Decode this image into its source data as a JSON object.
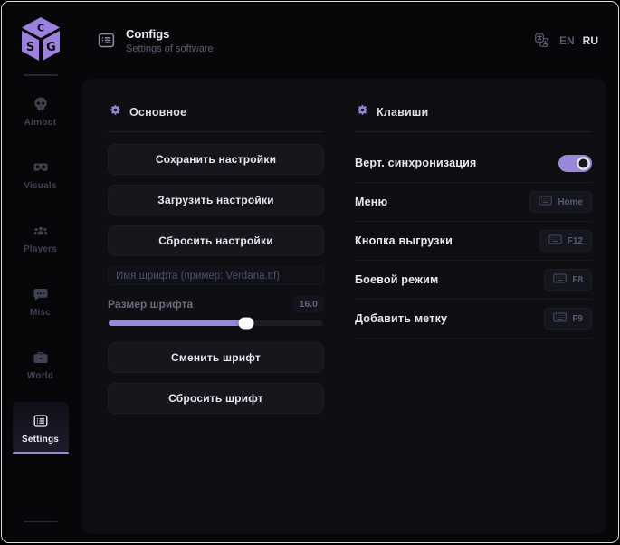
{
  "colors": {
    "accent": "#9b87d8",
    "panel": "#0e0e13",
    "background": "#07070a"
  },
  "logo": {
    "brand": "SG"
  },
  "header": {
    "title": "Configs",
    "subtitle": "Settings of software",
    "language": {
      "options": [
        "EN",
        "RU"
      ],
      "active": "RU"
    }
  },
  "sidebar": {
    "items": [
      {
        "label": "Aimbot",
        "icon": "skull-icon",
        "active": false
      },
      {
        "label": "Visuals",
        "icon": "goggles-icon",
        "active": false
      },
      {
        "label": "Players",
        "icon": "players-icon",
        "active": false
      },
      {
        "label": "Misc",
        "icon": "chat-icon",
        "active": false
      },
      {
        "label": "World",
        "icon": "briefcase-icon",
        "active": false
      },
      {
        "label": "Settings",
        "icon": "list-icon",
        "active": true
      }
    ]
  },
  "main": {
    "general": {
      "title": "Основное",
      "save_button": "Сохранить настройки",
      "load_button": "Загрузить настройки",
      "reset_button": "Сбросить настройки",
      "font_name_placeholder": "Имя шрифта (пример: Verdana.ttf)",
      "font_name_value": "",
      "font_size_label": "Размер шрифта",
      "font_size_value": "16.0",
      "font_size_percent": 64,
      "change_font_button": "Сменить шрифт",
      "reset_font_button": "Сбросить шрифт"
    },
    "keys": {
      "title": "Клавиши",
      "vsync": {
        "label": "Верт. синхронизация",
        "enabled": true
      },
      "bindings": [
        {
          "label": "Меню",
          "key": "Home"
        },
        {
          "label": "Кнопка выгрузки",
          "key": "F12"
        },
        {
          "label": "Боевой режим",
          "key": "F8"
        },
        {
          "label": "Добавить метку",
          "key": "F9"
        }
      ]
    }
  }
}
